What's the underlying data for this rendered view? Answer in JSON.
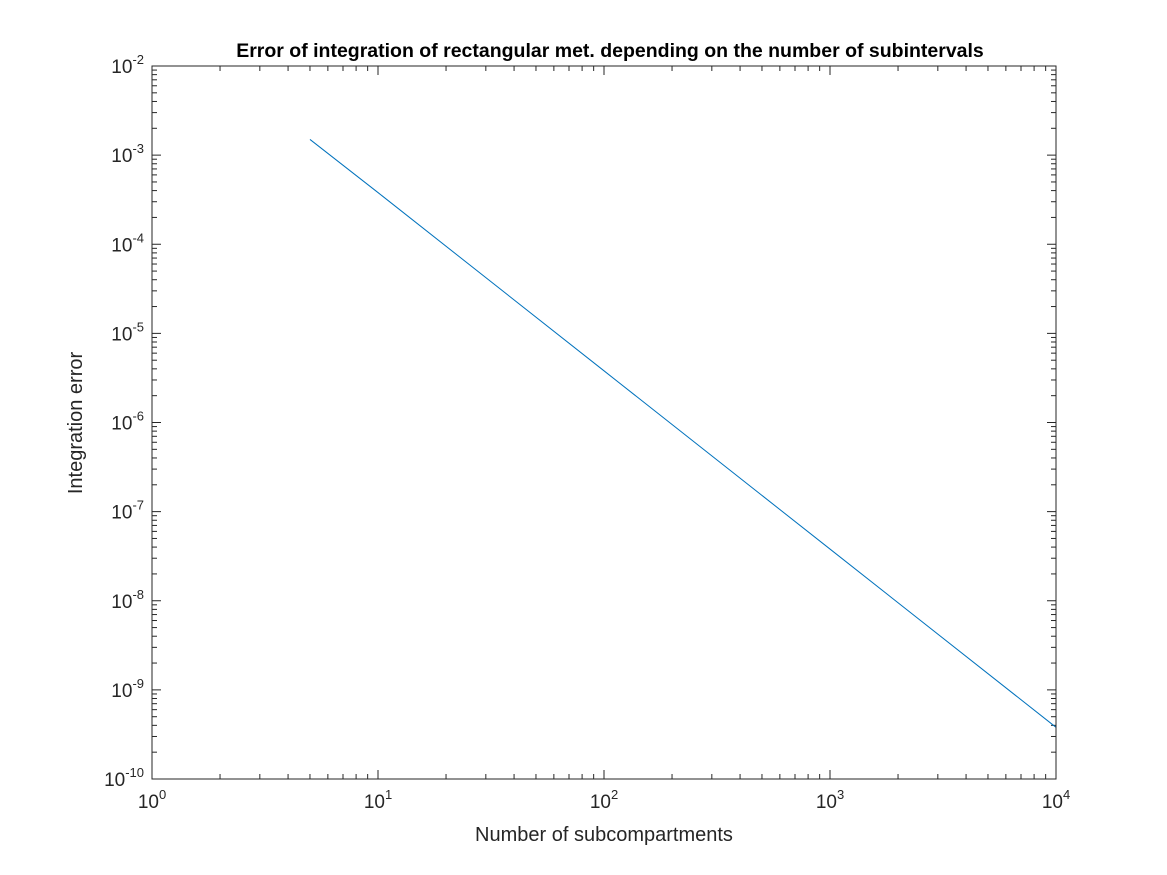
{
  "chart_data": {
    "type": "line",
    "title": "Error of integration of rectangular met. depending on the number of subintervals",
    "xlabel": "Number of subcompartments",
    "ylabel": "Integration error",
    "xscale": "log",
    "yscale": "log",
    "xlim": [
      1,
      10000
    ],
    "ylim": [
      1e-10,
      0.01
    ],
    "grid": false,
    "x_ticks": [
      {
        "value": 1,
        "base": "10",
        "exp": "0"
      },
      {
        "value": 10,
        "base": "10",
        "exp": "1"
      },
      {
        "value": 100,
        "base": "10",
        "exp": "2"
      },
      {
        "value": 1000,
        "base": "10",
        "exp": "3"
      },
      {
        "value": 10000,
        "base": "10",
        "exp": "4"
      }
    ],
    "y_ticks": [
      {
        "value": 1e-10,
        "base": "10",
        "exp": "-10"
      },
      {
        "value": 1e-09,
        "base": "10",
        "exp": "-9"
      },
      {
        "value": 1e-08,
        "base": "10",
        "exp": "-8"
      },
      {
        "value": 1e-07,
        "base": "10",
        "exp": "-7"
      },
      {
        "value": 1e-06,
        "base": "10",
        "exp": "-6"
      },
      {
        "value": 1e-05,
        "base": "10",
        "exp": "-5"
      },
      {
        "value": 0.0001,
        "base": "10",
        "exp": "-4"
      },
      {
        "value": 0.001,
        "base": "10",
        "exp": "-3"
      },
      {
        "value": 0.01,
        "base": "10",
        "exp": "-2"
      }
    ],
    "series": [
      {
        "color": "#0072BD",
        "x": [
          5,
          10,
          100,
          1000,
          10000
        ],
        "y": [
          0.0015,
          0.00038,
          3.8e-06,
          3.8e-08,
          3.8e-10
        ]
      }
    ]
  }
}
